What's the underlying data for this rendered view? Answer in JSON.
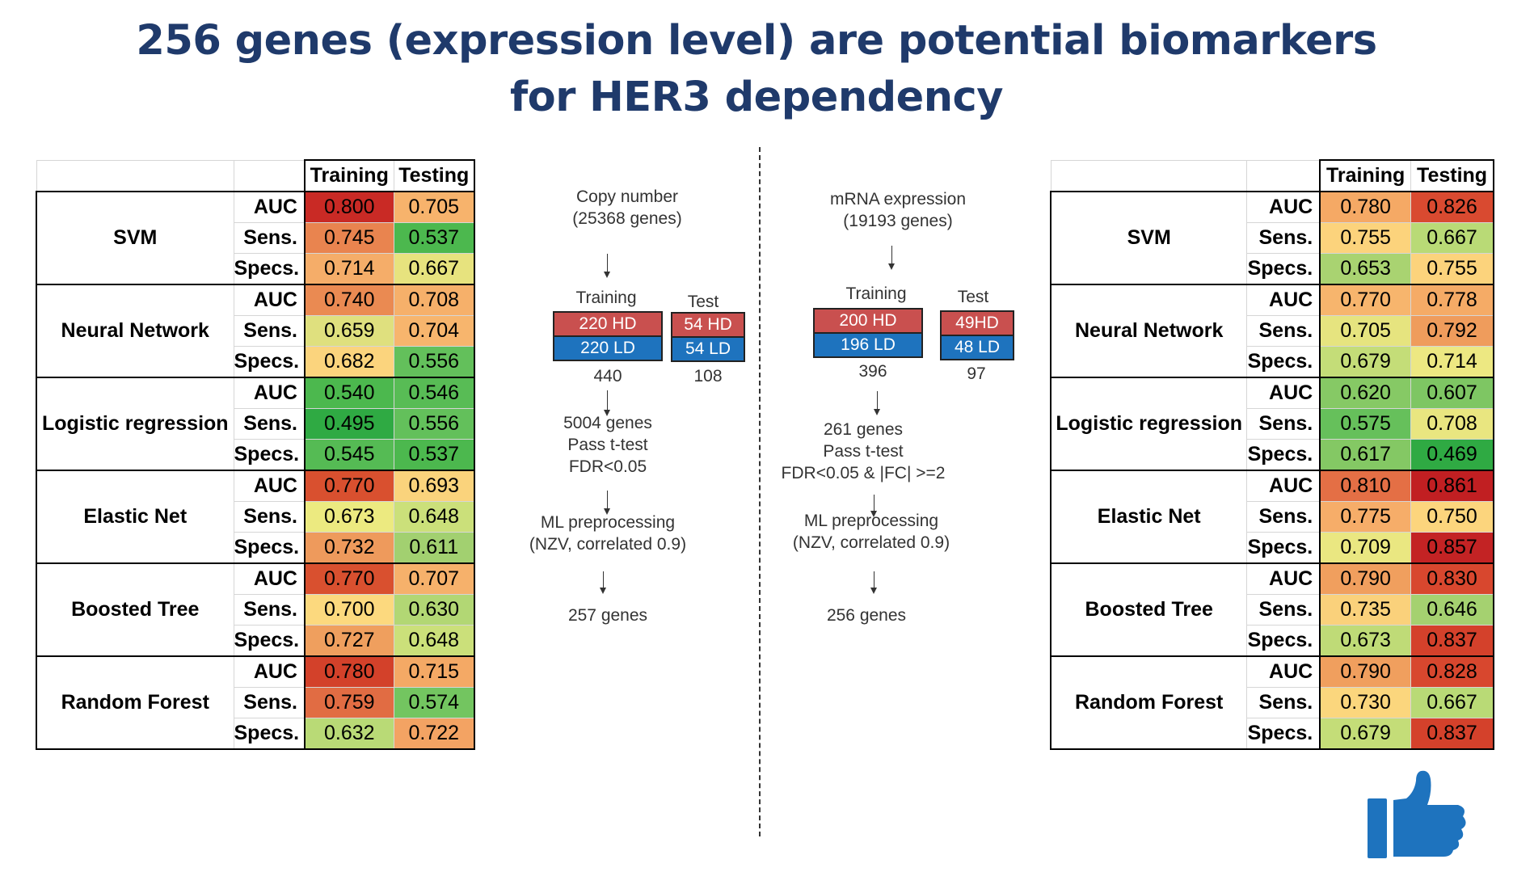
{
  "title": {
    "line1": "256 genes (expression level) are potential biomarkers",
    "line2": "for HER3 dependency"
  },
  "colors": {
    "title": "#1f3a6b",
    "hd_box": "#c9504f",
    "ld_box": "#1e73be",
    "thumb": "#1e73be"
  },
  "headers": {
    "training": "Training",
    "testing": "Testing"
  },
  "metrics": [
    "AUC",
    "Sens.",
    "Specs."
  ],
  "left_table": {
    "models": [
      {
        "name": "SVM",
        "rows": [
          {
            "metric": "AUC",
            "training": "0.800",
            "training_color": "#c92a25",
            "testing": "0.705",
            "testing_color": "#f7b36c"
          },
          {
            "metric": "Sens.",
            "training": "0.745",
            "training_color": "#e9844f",
            "testing": "0.537",
            "testing_color": "#4cb84e"
          },
          {
            "metric": "Specs.",
            "training": "0.714",
            "training_color": "#f5ad69",
            "testing": "0.667",
            "testing_color": "#e7e37e"
          }
        ]
      },
      {
        "name": "Neural Network",
        "rows": [
          {
            "metric": "AUC",
            "training": "0.740",
            "training_color": "#ea8a52",
            "testing": "0.708",
            "testing_color": "#f6b06a"
          },
          {
            "metric": "Sens.",
            "training": "0.659",
            "training_color": "#dfe07e",
            "testing": "0.704",
            "testing_color": "#f7b56d"
          },
          {
            "metric": "Specs.",
            "training": "0.682",
            "training_color": "#fbd47d",
            "testing": "0.556",
            "testing_color": "#63c05b"
          }
        ]
      },
      {
        "name": "Logistic regression",
        "rows": [
          {
            "metric": "AUC",
            "training": "0.540",
            "training_color": "#4cb84e",
            "testing": "0.546",
            "testing_color": "#58bc55"
          },
          {
            "metric": "Sens.",
            "training": "0.495",
            "training_color": "#2faa43",
            "testing": "0.556",
            "testing_color": "#63c05b"
          },
          {
            "metric": "Specs.",
            "training": "0.545",
            "training_color": "#55bb54",
            "testing": "0.537",
            "testing_color": "#4cb84e"
          }
        ]
      },
      {
        "name": "Elastic Net",
        "rows": [
          {
            "metric": "AUC",
            "training": "0.770",
            "training_color": "#d9502f",
            "testing": "0.693",
            "testing_color": "#fad37c"
          },
          {
            "metric": "Sens.",
            "training": "0.673",
            "training_color": "#ecea80",
            "testing": "0.648",
            "testing_color": "#cbe07a"
          },
          {
            "metric": "Specs.",
            "training": "0.732",
            "training_color": "#ee9a5c",
            "testing": "0.611",
            "testing_color": "#a2d070"
          }
        ]
      },
      {
        "name": "Boosted Tree",
        "rows": [
          {
            "metric": "AUC",
            "training": "0.770",
            "training_color": "#d9502f",
            "testing": "0.707",
            "testing_color": "#f6b16b"
          },
          {
            "metric": "Sens.",
            "training": "0.700",
            "training_color": "#fcd97e",
            "testing": "0.630",
            "testing_color": "#b2d774"
          },
          {
            "metric": "Specs.",
            "training": "0.727",
            "training_color": "#ef9f5e",
            "testing": "0.648",
            "testing_color": "#cbe07a"
          }
        ]
      },
      {
        "name": "Random Forest",
        "rows": [
          {
            "metric": "AUC",
            "training": "0.780",
            "training_color": "#d3412a",
            "testing": "0.715",
            "testing_color": "#f4a965"
          },
          {
            "metric": "Sens.",
            "training": "0.759",
            "training_color": "#e16c43",
            "testing": "0.574",
            "testing_color": "#73c560"
          },
          {
            "metric": "Specs.",
            "training": "0.632",
            "training_color": "#b9da76",
            "testing": "0.722",
            "testing_color": "#f3a363"
          }
        ]
      }
    ]
  },
  "right_table": {
    "models": [
      {
        "name": "SVM",
        "rows": [
          {
            "metric": "AUC",
            "training": "0.780",
            "training_color": "#f5a965",
            "testing": "0.826",
            "testing_color": "#d94a30"
          },
          {
            "metric": "Sens.",
            "training": "0.755",
            "training_color": "#fcd37c",
            "testing": "0.667",
            "testing_color": "#b9da76"
          },
          {
            "metric": "Specs.",
            "training": "0.653",
            "training_color": "#a9d371",
            "testing": "0.755",
            "testing_color": "#fcd37c"
          }
        ]
      },
      {
        "name": "Neural Network",
        "rows": [
          {
            "metric": "AUC",
            "training": "0.770",
            "training_color": "#f7b56d",
            "testing": "0.778",
            "testing_color": "#f5ab66"
          },
          {
            "metric": "Sens.",
            "training": "0.705",
            "training_color": "#e6e47f",
            "testing": "0.792",
            "testing_color": "#ef9c5c"
          },
          {
            "metric": "Specs.",
            "training": "0.679",
            "training_color": "#c4dd78",
            "testing": "0.714",
            "testing_color": "#ede882"
          }
        ]
      },
      {
        "name": "Logistic regression",
        "rows": [
          {
            "metric": "AUC",
            "training": "0.620",
            "training_color": "#86c965",
            "testing": "0.607",
            "testing_color": "#7ec663"
          },
          {
            "metric": "Sens.",
            "training": "0.575",
            "training_color": "#66c05b",
            "testing": "0.708",
            "testing_color": "#e9e680"
          },
          {
            "metric": "Specs.",
            "training": "0.617",
            "training_color": "#84c864",
            "testing": "0.469",
            "testing_color": "#2faa43"
          }
        ]
      },
      {
        "name": "Elastic Net",
        "rows": [
          {
            "metric": "AUC",
            "training": "0.810",
            "training_color": "#e46f45",
            "testing": "0.861",
            "testing_color": "#c11f22"
          },
          {
            "metric": "Sens.",
            "training": "0.775",
            "training_color": "#f6ad69",
            "testing": "0.750",
            "testing_color": "#fcd57d"
          },
          {
            "metric": "Specs.",
            "training": "0.709",
            "training_color": "#eae781",
            "testing": "0.857",
            "testing_color": "#c32324"
          }
        ]
      },
      {
        "name": "Boosted Tree",
        "rows": [
          {
            "metric": "AUC",
            "training": "0.790",
            "training_color": "#f09f5e",
            "testing": "0.830",
            "testing_color": "#d8472e"
          },
          {
            "metric": "Sens.",
            "training": "0.735",
            "training_color": "#fad17b",
            "testing": "0.646",
            "testing_color": "#a5d170"
          },
          {
            "metric": "Specs.",
            "training": "0.673",
            "training_color": "#bfdb77",
            "testing": "0.837",
            "testing_color": "#d4412b"
          }
        ]
      },
      {
        "name": "Random Forest",
        "rows": [
          {
            "metric": "AUC",
            "training": "0.790",
            "training_color": "#f09f5e",
            "testing": "0.828",
            "testing_color": "#d8472e"
          },
          {
            "metric": "Sens.",
            "training": "0.730",
            "training_color": "#fbd67d",
            "testing": "0.667",
            "testing_color": "#b9da76"
          },
          {
            "metric": "Specs.",
            "training": "0.679",
            "training_color": "#c4dd78",
            "testing": "0.837",
            "testing_color": "#d4412b"
          }
        ]
      }
    ]
  },
  "flow_left": {
    "source": "Copy number",
    "source_count": "(25368 genes)",
    "training_label": "Training",
    "test_label": "Test",
    "train_hd": "220 HD",
    "train_ld": "220 LD",
    "test_hd": "54 HD",
    "test_ld": "54 LD",
    "train_total": "440",
    "test_total": "108",
    "filter_1": "5004 genes",
    "filter_2": "Pass t-test",
    "filter_3": "FDR<0.05",
    "ml_1": "ML preprocessing",
    "ml_2": "(NZV, correlated 0.9)",
    "result": "257 genes"
  },
  "flow_right": {
    "source": "mRNA expression",
    "source_count": "(19193 genes)",
    "training_label": "Training",
    "test_label": "Test",
    "train_hd": "200 HD",
    "train_ld": "196 LD",
    "test_hd": "49HD",
    "test_ld": "48 LD",
    "train_total": "396",
    "test_total": "97",
    "filter_1": "261 genes",
    "filter_2": "Pass t-test",
    "filter_3": "FDR<0.05 & |FC| >=2",
    "ml_1": "ML preprocessing",
    "ml_2": "(NZV, correlated 0.9)",
    "result": "256 genes"
  },
  "icons": {
    "thumb": "thumbs-up-icon"
  }
}
